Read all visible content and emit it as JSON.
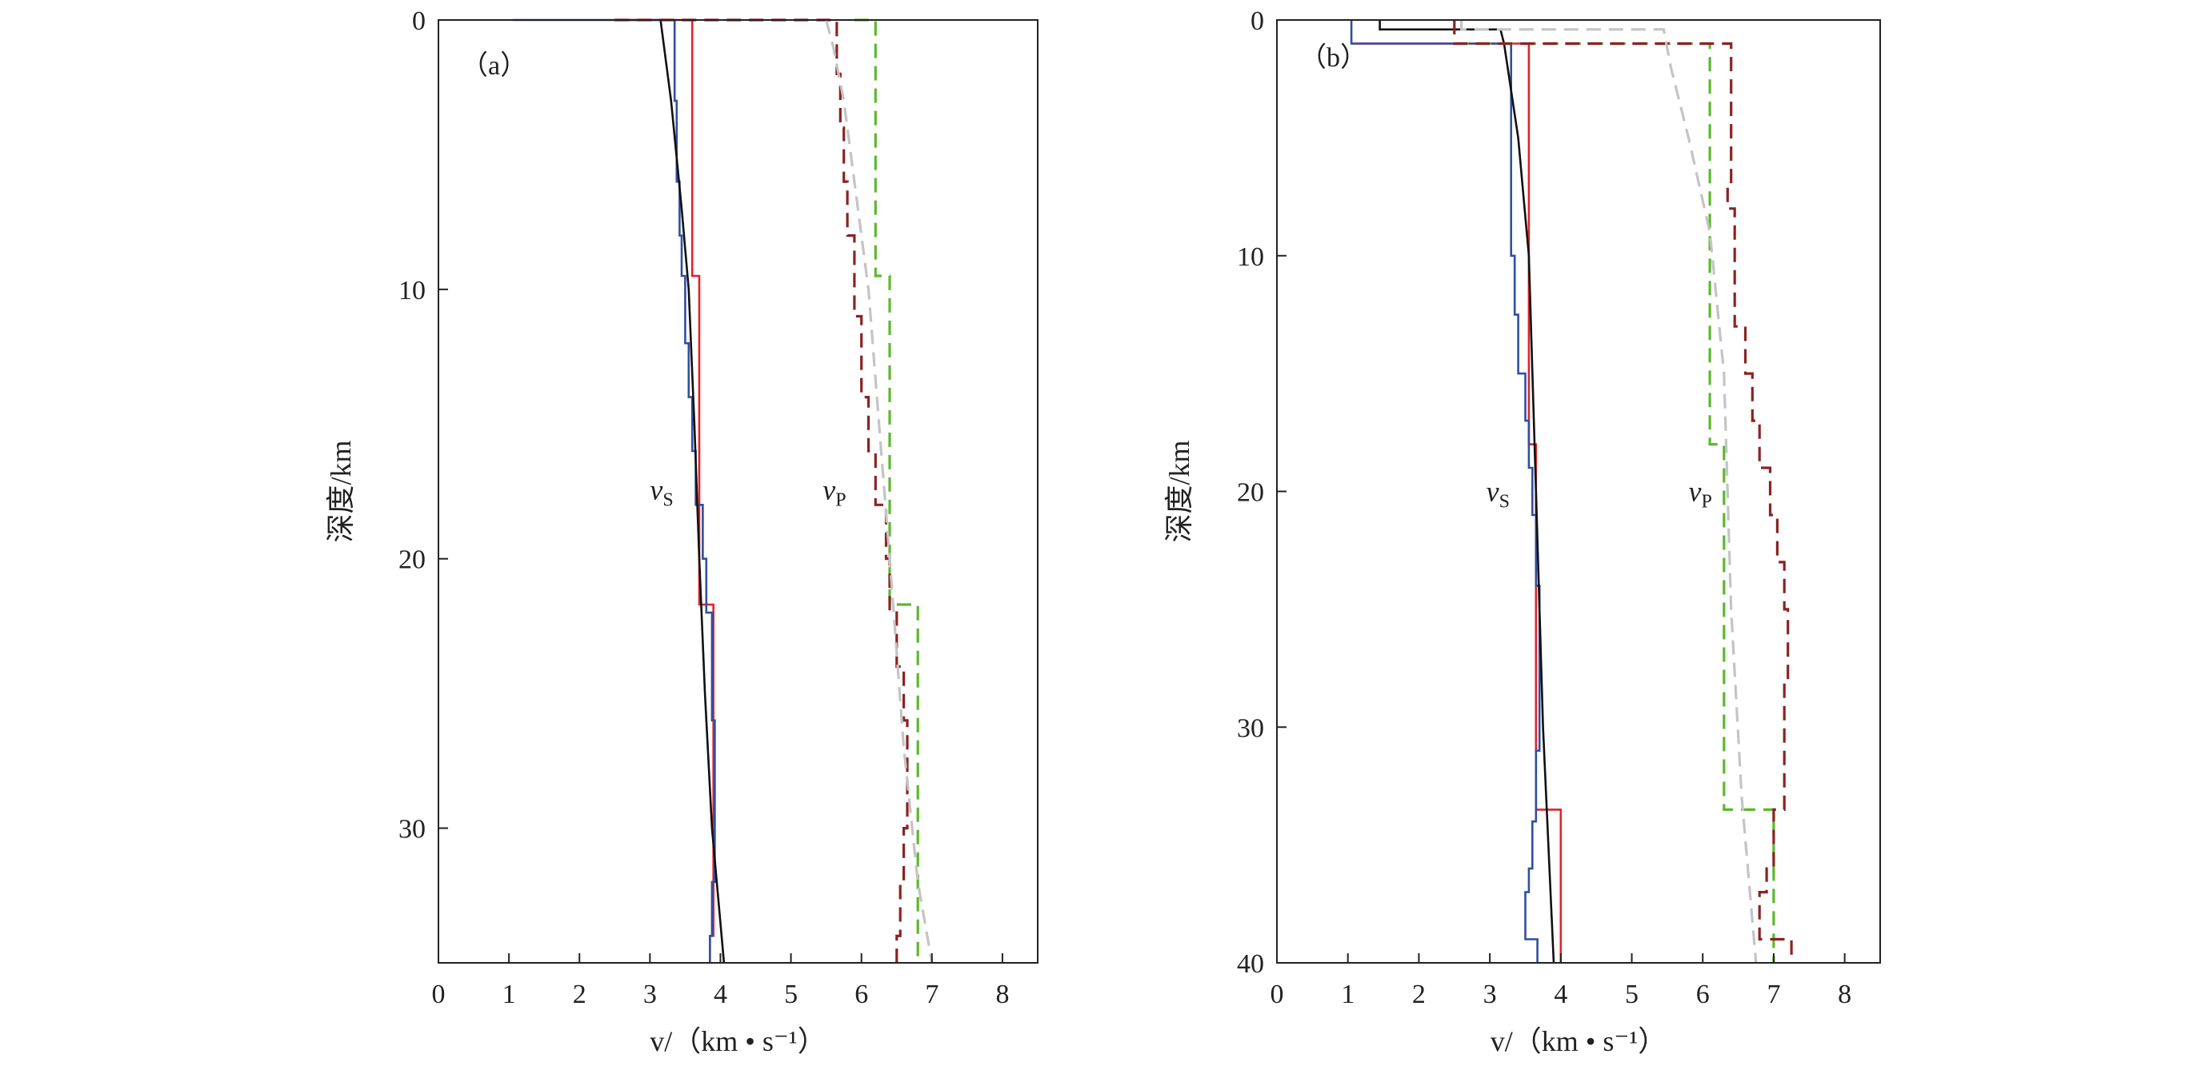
{
  "chart_data": [
    {
      "type": "line",
      "panel_label": "（a）",
      "xlabel": "v/（km • s⁻¹）",
      "ylabel": "深度/km",
      "xlim": [
        0,
        8.5
      ],
      "ylim": [
        0,
        35
      ],
      "y_inverted": true,
      "xticks": [
        "0",
        "1",
        "2",
        "3",
        "4",
        "5",
        "6",
        "7",
        "8"
      ],
      "yticks": [
        "0",
        "10",
        "20",
        "30"
      ],
      "annotations": [
        {
          "text": "v",
          "sub": "S",
          "x": 3.0,
          "y": 17.8
        },
        {
          "text": "v",
          "sub": "P",
          "x": 5.45,
          "y": 17.8
        }
      ],
      "series": [
        {
          "name": "vs-red",
          "color": "#e0232a",
          "dash": false,
          "points": [
            [
              2.5,
              0
            ],
            [
              3.6,
              0
            ],
            [
              3.6,
              9.5
            ],
            [
              3.7,
              9.5
            ],
            [
              3.7,
              21.7
            ],
            [
              3.9,
              21.7
            ],
            [
              3.9,
              34
            ],
            [
              3.85,
              34
            ],
            [
              3.85,
              35
            ]
          ]
        },
        {
          "name": "vs-blue",
          "color": "#2f4fa0",
          "dash": false,
          "points": [
            [
              1.05,
              0
            ],
            [
              3.35,
              0
            ],
            [
              3.35,
              3
            ],
            [
              3.38,
              3
            ],
            [
              3.38,
              6
            ],
            [
              3.42,
              6
            ],
            [
              3.42,
              8
            ],
            [
              3.45,
              8
            ],
            [
              3.45,
              9.5
            ],
            [
              3.5,
              9.5
            ],
            [
              3.5,
              12
            ],
            [
              3.55,
              12
            ],
            [
              3.55,
              14
            ],
            [
              3.6,
              14
            ],
            [
              3.6,
              16
            ],
            [
              3.65,
              16
            ],
            [
              3.65,
              18
            ],
            [
              3.75,
              18
            ],
            [
              3.75,
              20
            ],
            [
              3.8,
              20
            ],
            [
              3.8,
              22
            ],
            [
              3.88,
              22
            ],
            [
              3.88,
              26
            ],
            [
              3.92,
              26
            ],
            [
              3.92,
              32
            ],
            [
              3.88,
              32
            ],
            [
              3.88,
              34
            ],
            [
              3.85,
              34
            ],
            [
              3.85,
              35
            ]
          ]
        },
        {
          "name": "vs-black",
          "color": "#111111",
          "dash": false,
          "points": [
            [
              3.15,
              0
            ],
            [
              3.3,
              3
            ],
            [
              3.45,
              7
            ],
            [
              3.55,
              10
            ],
            [
              3.63,
              15
            ],
            [
              3.7,
              20
            ],
            [
              3.78,
              25
            ],
            [
              3.88,
              30
            ],
            [
              4.05,
              35
            ]
          ]
        },
        {
          "name": "vp-green",
          "color": "#5cb82e",
          "dash": true,
          "points": [
            [
              5.9,
              0
            ],
            [
              6.2,
              0
            ],
            [
              6.2,
              9.5
            ],
            [
              6.4,
              9.5
            ],
            [
              6.4,
              21.7
            ],
            [
              6.8,
              21.7
            ],
            [
              6.8,
              35
            ]
          ]
        },
        {
          "name": "vp-brown",
          "color": "#8b2323",
          "dash": true,
          "points": [
            [
              2.5,
              0
            ],
            [
              5.65,
              0
            ],
            [
              5.65,
              2
            ],
            [
              5.7,
              2
            ],
            [
              5.7,
              4
            ],
            [
              5.75,
              4
            ],
            [
              5.75,
              6
            ],
            [
              5.8,
              6
            ],
            [
              5.8,
              8
            ],
            [
              5.9,
              8
            ],
            [
              5.9,
              11
            ],
            [
              6.0,
              11
            ],
            [
              6.0,
              14
            ],
            [
              6.1,
              14
            ],
            [
              6.1,
              16
            ],
            [
              6.2,
              16
            ],
            [
              6.2,
              18
            ],
            [
              6.35,
              18
            ],
            [
              6.35,
              20
            ],
            [
              6.4,
              20
            ],
            [
              6.4,
              22
            ],
            [
              6.5,
              22
            ],
            [
              6.5,
              24
            ],
            [
              6.6,
              24
            ],
            [
              6.6,
              26
            ],
            [
              6.65,
              26
            ],
            [
              6.65,
              30
            ],
            [
              6.6,
              30
            ],
            [
              6.6,
              32
            ],
            [
              6.55,
              32
            ],
            [
              6.55,
              34
            ],
            [
              6.5,
              34
            ],
            [
              6.5,
              35
            ]
          ]
        },
        {
          "name": "vp-gray",
          "color": "#c4c4c4",
          "dash": true,
          "points": [
            [
              5.5,
              0
            ],
            [
              5.6,
              1
            ],
            [
              5.75,
              3
            ],
            [
              5.9,
              6
            ],
            [
              6.1,
              10
            ],
            [
              6.25,
              15
            ],
            [
              6.4,
              20
            ],
            [
              6.6,
              27
            ],
            [
              6.8,
              32
            ],
            [
              7.0,
              35
            ]
          ]
        }
      ]
    },
    {
      "type": "line",
      "panel_label": "（b）",
      "xlabel": "v/（km • s⁻¹）",
      "ylabel": "深度/km",
      "xlim": [
        0,
        8.5
      ],
      "ylim": [
        0,
        40
      ],
      "y_inverted": true,
      "xticks": [
        "0",
        "1",
        "2",
        "3",
        "4",
        "5",
        "6",
        "7",
        "8"
      ],
      "yticks": [
        "0",
        "10",
        "20",
        "30",
        "40"
      ],
      "annotations": [
        {
          "text": "v",
          "sub": "S",
          "x": 2.95,
          "y": 20.4
        },
        {
          "text": "v",
          "sub": "P",
          "x": 5.8,
          "y": 20.4
        }
      ],
      "series": [
        {
          "name": "vs-red",
          "color": "#e0232a",
          "dash": false,
          "points": [
            [
              1.05,
              1
            ],
            [
              3.55,
              1
            ],
            [
              3.55,
              18
            ],
            [
              3.65,
              18
            ],
            [
              3.65,
              33.5
            ],
            [
              4.0,
              33.5
            ],
            [
              4.0,
              40
            ]
          ]
        },
        {
          "name": "vs-blue",
          "color": "#2f4fa0",
          "dash": false,
          "points": [
            [
              1.05,
              0
            ],
            [
              1.05,
              1
            ],
            [
              3.3,
              1
            ],
            [
              3.3,
              10
            ],
            [
              3.35,
              10
            ],
            [
              3.35,
              12.5
            ],
            [
              3.4,
              12.5
            ],
            [
              3.4,
              15
            ],
            [
              3.5,
              15
            ],
            [
              3.5,
              17
            ],
            [
              3.55,
              17
            ],
            [
              3.55,
              19
            ],
            [
              3.6,
              19
            ],
            [
              3.6,
              21
            ],
            [
              3.65,
              21
            ],
            [
              3.65,
              24
            ],
            [
              3.7,
              24
            ],
            [
              3.7,
              31
            ],
            [
              3.65,
              31
            ],
            [
              3.65,
              34
            ],
            [
              3.6,
              34
            ],
            [
              3.6,
              36
            ],
            [
              3.55,
              36
            ],
            [
              3.55,
              37
            ],
            [
              3.5,
              37
            ],
            [
              3.5,
              39
            ],
            [
              3.67,
              39
            ],
            [
              3.67,
              40
            ]
          ]
        },
        {
          "name": "vs-black",
          "color": "#111111",
          "dash": false,
          "points": [
            [
              1.45,
              0
            ],
            [
              1.45,
              0.4
            ],
            [
              3.15,
              0.4
            ],
            [
              3.2,
              1
            ],
            [
              3.4,
              5
            ],
            [
              3.55,
              10
            ],
            [
              3.65,
              20
            ],
            [
              3.75,
              30
            ],
            [
              3.9,
              40
            ]
          ]
        },
        {
          "name": "vp-green",
          "color": "#5cb82e",
          "dash": true,
          "points": [
            [
              2.5,
              1
            ],
            [
              6.1,
              1
            ],
            [
              6.1,
              18
            ],
            [
              6.3,
              18
            ],
            [
              6.3,
              33.5
            ],
            [
              7.0,
              33.5
            ],
            [
              7.0,
              40
            ]
          ]
        },
        {
          "name": "vp-brown",
          "color": "#8b2323",
          "dash": true,
          "points": [
            [
              2.5,
              0
            ],
            [
              2.5,
              1
            ],
            [
              6.4,
              1
            ],
            [
              6.4,
              7
            ],
            [
              6.35,
              7
            ],
            [
              6.35,
              8
            ],
            [
              6.45,
              8
            ],
            [
              6.45,
              13
            ],
            [
              6.6,
              13
            ],
            [
              6.6,
              15
            ],
            [
              6.7,
              15
            ],
            [
              6.7,
              17
            ],
            [
              6.8,
              17
            ],
            [
              6.8,
              19
            ],
            [
              6.95,
              19
            ],
            [
              6.95,
              21
            ],
            [
              7.05,
              21
            ],
            [
              7.05,
              23
            ],
            [
              7.15,
              23
            ],
            [
              7.15,
              25
            ],
            [
              7.2,
              25
            ],
            [
              7.2,
              28
            ],
            [
              7.15,
              28
            ],
            [
              7.15,
              33.5
            ],
            [
              7.0,
              33.5
            ],
            [
              7.0,
              36
            ],
            [
              6.9,
              36
            ],
            [
              6.9,
              37
            ],
            [
              6.8,
              37
            ],
            [
              6.8,
              39
            ],
            [
              7.25,
              39
            ],
            [
              7.25,
              40
            ]
          ]
        },
        {
          "name": "vp-gray",
          "color": "#c4c4c4",
          "dash": true,
          "points": [
            [
              2.6,
              0
            ],
            [
              2.6,
              0.4
            ],
            [
              5.45,
              0.4
            ],
            [
              5.55,
              2
            ],
            [
              5.8,
              5
            ],
            [
              6.1,
              9
            ],
            [
              6.3,
              15
            ],
            [
              6.4,
              25
            ],
            [
              6.55,
              33
            ],
            [
              6.75,
              40
            ]
          ]
        }
      ]
    }
  ]
}
